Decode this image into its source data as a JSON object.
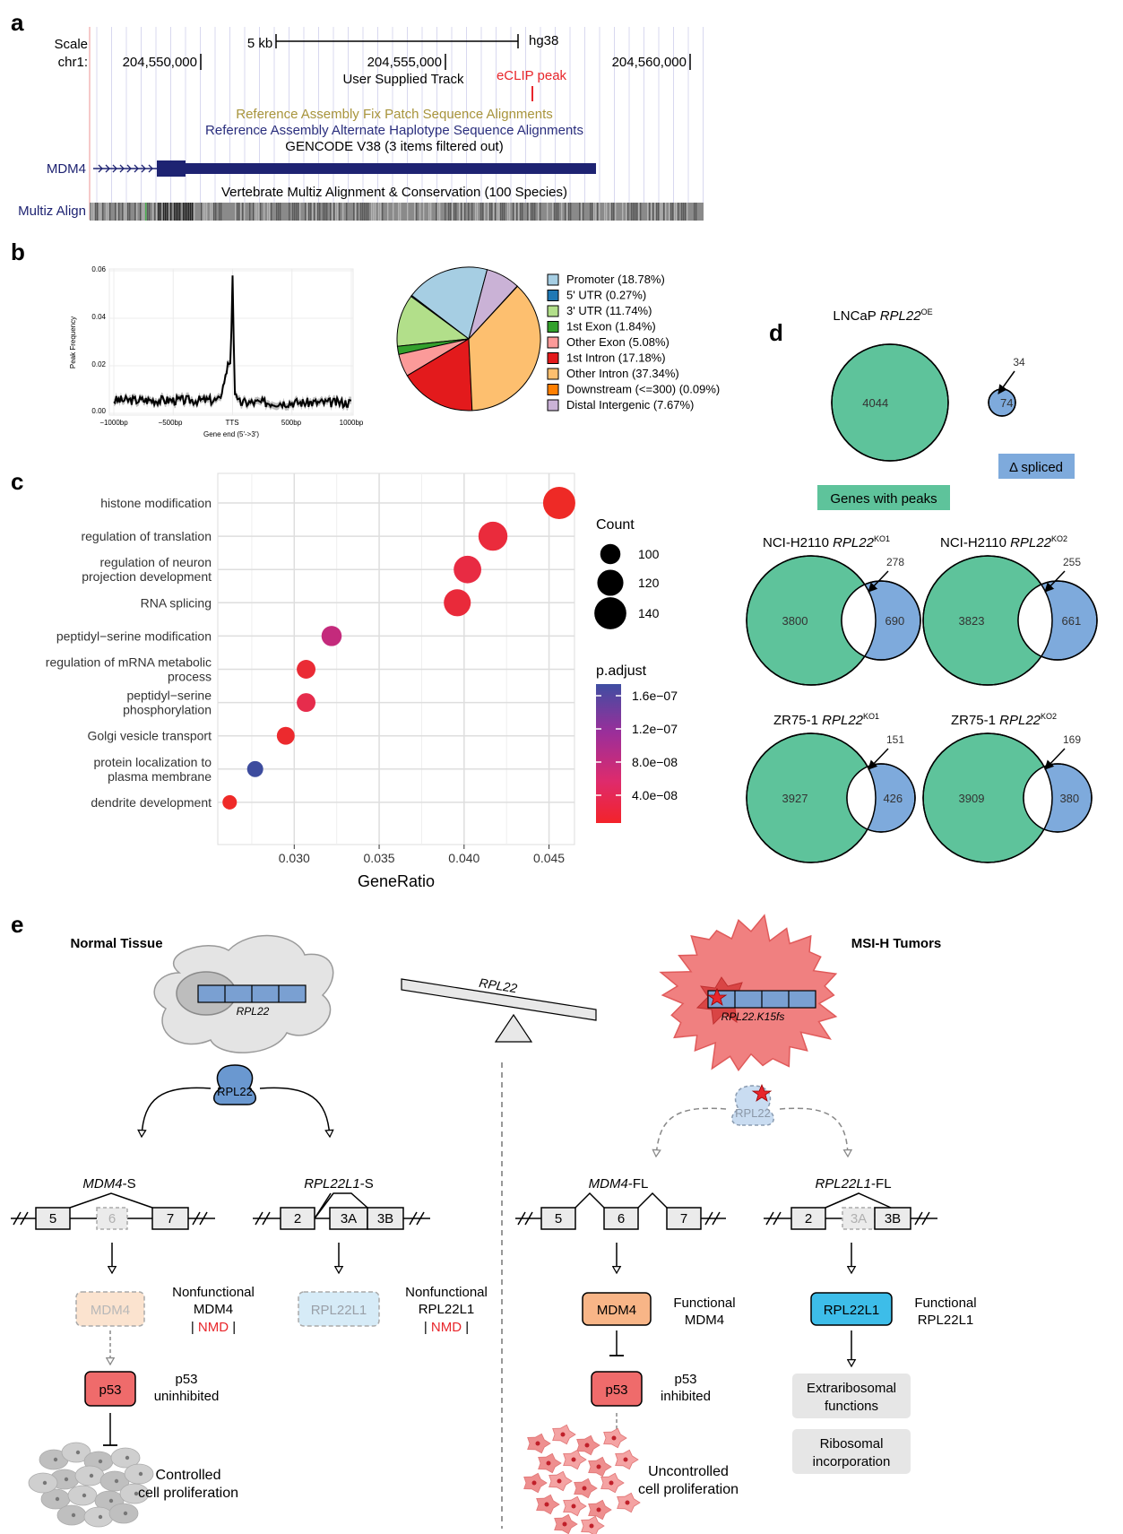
{
  "panel_labels": {
    "a": "a",
    "b": "b",
    "c": "c",
    "d": "d",
    "e": "e"
  },
  "browser": {
    "scale_label": "Scale",
    "chr_label": "chr1:",
    "scale_bar_label": "5 kb",
    "assembly": "hg38",
    "coords": [
      "204,550,000",
      "204,555,000",
      "204,560,000"
    ],
    "tracks": {
      "user_supplied": "User Supplied Track",
      "eclip": "eCLIP peak",
      "fix_patch": "Reference Assembly Fix Patch Sequence Alignments",
      "alt_haplo": "Reference Assembly Alternate Haplotype Sequence Alignments",
      "gencode": "GENCODE V38 (3 items filtered out)",
      "gene_name": "MDM4",
      "multiz_title": "Vertebrate Multiz Alignment & Conservation (100 Species)",
      "multiz_label": "Multiz Align"
    },
    "colors": {
      "eclip": "#e8262b",
      "fix_patch": "#a8943c",
      "alt_haplo": "#2a2e7d",
      "gene": "#1e2372"
    }
  },
  "density": {
    "ylabel": "Peak Frequency",
    "xlabel": "Gene end (5'->3')",
    "yticks": [
      "0.06",
      "0.04",
      "0.02",
      "0.00"
    ],
    "xticks": [
      "−1000bp",
      "−500bp",
      "TTS",
      "500bp",
      "1000bp"
    ]
  },
  "pie": {
    "type": "pie",
    "slices": [
      {
        "label": "Promoter (18.78%)",
        "value": 18.78,
        "color": "#a6cee3"
      },
      {
        "label": "5' UTR (0.27%)",
        "value": 0.27,
        "color": "#1f78b4"
      },
      {
        "label": "3' UTR (11.74%)",
        "value": 11.74,
        "color": "#b2df8a"
      },
      {
        "label": "1st Exon (1.84%)",
        "value": 1.84,
        "color": "#33a02c"
      },
      {
        "label": "Other Exon (5.08%)",
        "value": 5.08,
        "color": "#fb9a99"
      },
      {
        "label": "1st Intron (17.18%)",
        "value": 17.18,
        "color": "#e31a1c"
      },
      {
        "label": "Other Intron (37.34%)",
        "value": 37.34,
        "color": "#fdbf6f"
      },
      {
        "label": "Downstream (<=300) (0.09%)",
        "value": 0.09,
        "color": "#ff7f00"
      },
      {
        "label": "Distal Intergenic (7.67%)",
        "value": 7.67,
        "color": "#cab2d6"
      }
    ]
  },
  "chart_data": {
    "type": "scatter",
    "xlabel": "GeneRatio",
    "xlim": [
      0.0255,
      0.0465
    ],
    "xticks": [
      "0.030",
      "0.035",
      "0.040",
      "0.045"
    ],
    "categories": [
      "histone modification",
      "regulation of translation",
      "regulation of neuron projection development",
      "RNA splicing",
      "peptidyl−serine modification",
      "regulation of mRNA metabolic process",
      "peptidyl−serine phosphorylation",
      "Golgi vesicle transport",
      "protein localization to plasma membrane",
      "dendrite development"
    ],
    "category_lines": [
      [
        "histone modification"
      ],
      [
        "regulation of translation"
      ],
      [
        "regulation of neuron",
        "projection development"
      ],
      [
        "RNA splicing"
      ],
      [
        "peptidyl−serine modification"
      ],
      [
        "regulation of mRNA metabolic",
        "process"
      ],
      [
        "peptidyl−serine",
        "phosphorylation"
      ],
      [
        "Golgi vesicle transport"
      ],
      [
        "protein localization to",
        "plasma membrane"
      ],
      [
        "dendrite development"
      ]
    ],
    "points": [
      {
        "x": 0.0456,
        "count": 141,
        "color": "#ee2a26"
      },
      {
        "x": 0.0417,
        "count": 130,
        "color": "#ea2b3c"
      },
      {
        "x": 0.0402,
        "count": 125,
        "color": "#e82b43"
      },
      {
        "x": 0.0396,
        "count": 123,
        "color": "#e92a3a"
      },
      {
        "x": 0.0322,
        "count": 100,
        "color": "#c42a7c"
      },
      {
        "x": 0.0307,
        "count": 95,
        "color": "#ea2b35"
      },
      {
        "x": 0.0307,
        "count": 95,
        "color": "#e62c4c"
      },
      {
        "x": 0.0295,
        "count": 92,
        "color": "#ec2a2e"
      },
      {
        "x": 0.0277,
        "count": 86,
        "color": "#3d4c9e"
      },
      {
        "x": 0.0262,
        "count": 80,
        "color": "#ef2a28"
      }
    ],
    "size_legend": {
      "title": "Count",
      "values": [
        "100",
        "120",
        "140"
      ]
    },
    "color_legend": {
      "title": "p.adjust",
      "values": [
        "1.6e−07",
        "1.2e−07",
        "8.0e−08",
        "4.0e−08"
      ],
      "colors": [
        "#3f4ea2",
        "#9b2e9a",
        "#de2b6c",
        "#f3232a"
      ]
    }
  },
  "venn": {
    "main": {
      "title_prefix": "LNCaP ",
      "title_gene": "RPL22",
      "title_sup": "OE",
      "left": "4044",
      "right": "74",
      "overlap": "34"
    },
    "legend_peaks": "Genes with peaks",
    "legend_spliced": "Δ spliced",
    "items": [
      {
        "prefix": "NCI-H2110 ",
        "gene": "RPL22",
        "sup": "KO1",
        "left": "3800",
        "right": "690",
        "overlap": "278"
      },
      {
        "prefix": "NCI-H2110 ",
        "gene": "RPL22",
        "sup": "KO2",
        "left": "3823",
        "right": "661",
        "overlap": "255"
      },
      {
        "prefix": "ZR75-1 ",
        "gene": "RPL22",
        "sup": "KO1",
        "left": "3927",
        "right": "426",
        "overlap": "151"
      },
      {
        "prefix": "ZR75-1 ",
        "gene": "RPL22",
        "sup": "KO2",
        "left": "3909",
        "right": "380",
        "overlap": "169"
      }
    ],
    "colors": {
      "peaks": "#5ec39b",
      "spliced": "#7eaadc"
    }
  },
  "model": {
    "normal_title": "Normal Tissue",
    "tumor_title": "MSI-H Tumors",
    "seesaw_label": "RPL22",
    "normal_gene": "RPL22",
    "tumor_gene": "RPL22.K15fs",
    "protein": "RPL22",
    "mdm4_s": {
      "gene": "MDM4",
      "suffix": "-S",
      "exons": [
        "5",
        "6",
        "7"
      ]
    },
    "rpl22l1_s": {
      "gene": "RPL22L1",
      "suffix": "-S",
      "exons": [
        "2",
        "3A",
        "3B"
      ]
    },
    "mdm4_fl": {
      "gene": "MDM4",
      "suffix": "-FL",
      "exons": [
        "5",
        "6",
        "7"
      ]
    },
    "rpl22l1_fl": {
      "gene": "RPL22L1",
      "suffix": "-FL",
      "exons": [
        "2",
        "3A",
        "3B"
      ]
    },
    "nf_mdm4": {
      "box": "MDM4",
      "l1": "Nonfunctional",
      "l2": "MDM4",
      "nmd": "NMD"
    },
    "nf_rpl22l1": {
      "box": "RPL22L1",
      "l1": "Nonfunctional",
      "l2": "RPL22L1",
      "nmd": "NMD"
    },
    "f_mdm4": {
      "box": "MDM4",
      "l1": "Functional",
      "l2": "MDM4"
    },
    "f_rpl22l1": {
      "box": "RPL22L1",
      "l1": "Functional",
      "l2": "RPL22L1"
    },
    "p53_left": {
      "box": "p53",
      "l1": "p53",
      "l2": "uninhibited"
    },
    "p53_right": {
      "box": "p53",
      "l1": "p53",
      "l2": "inhibited"
    },
    "controlled": {
      "l1": "Controlled",
      "l2": "cell proliferation"
    },
    "uncontrolled": {
      "l1": "Uncontrolled",
      "l2": "cell proliferation"
    },
    "extra": {
      "l1": "Extraribosomal",
      "l2": "functions"
    },
    "ribo": {
      "l1": "Ribosomal",
      "l2": "incorporation"
    }
  }
}
